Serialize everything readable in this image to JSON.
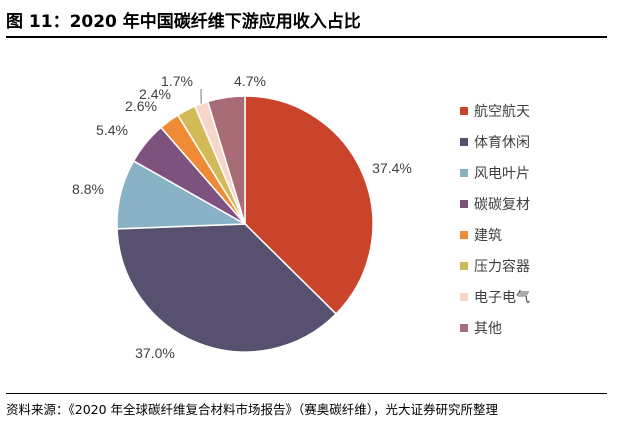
{
  "header": {
    "title": "图 11：2020 年中国碳纤维下游应用收入占比"
  },
  "footer": {
    "source": "资料来源：《2020 年全球碳纤维复合材料市场报告》（赛奥碳纤维），光大证券研究所整理"
  },
  "chart_data": {
    "type": "pie",
    "title": "",
    "labels": [
      "航空航天",
      "体育休闲",
      "风电叶片",
      "碳碳复材",
      "建筑",
      "压力容器",
      "电子电气",
      "其他"
    ],
    "values": [
      37.4,
      37.0,
      8.8,
      5.4,
      2.6,
      2.4,
      1.7,
      4.7
    ],
    "value_labels": [
      "37.4%",
      "37.0%",
      "8.8%",
      "5.4%",
      "2.6%",
      "2.4%",
      "1.7%",
      "4.7%"
    ],
    "colors": [
      "#C9442A",
      "#57506F",
      "#8AB2C6",
      "#7D527F",
      "#EF8B34",
      "#D3BA59",
      "#F6D5CB",
      "#A86C77"
    ],
    "legend": "right",
    "start": "12 o'clock, clockwise"
  }
}
